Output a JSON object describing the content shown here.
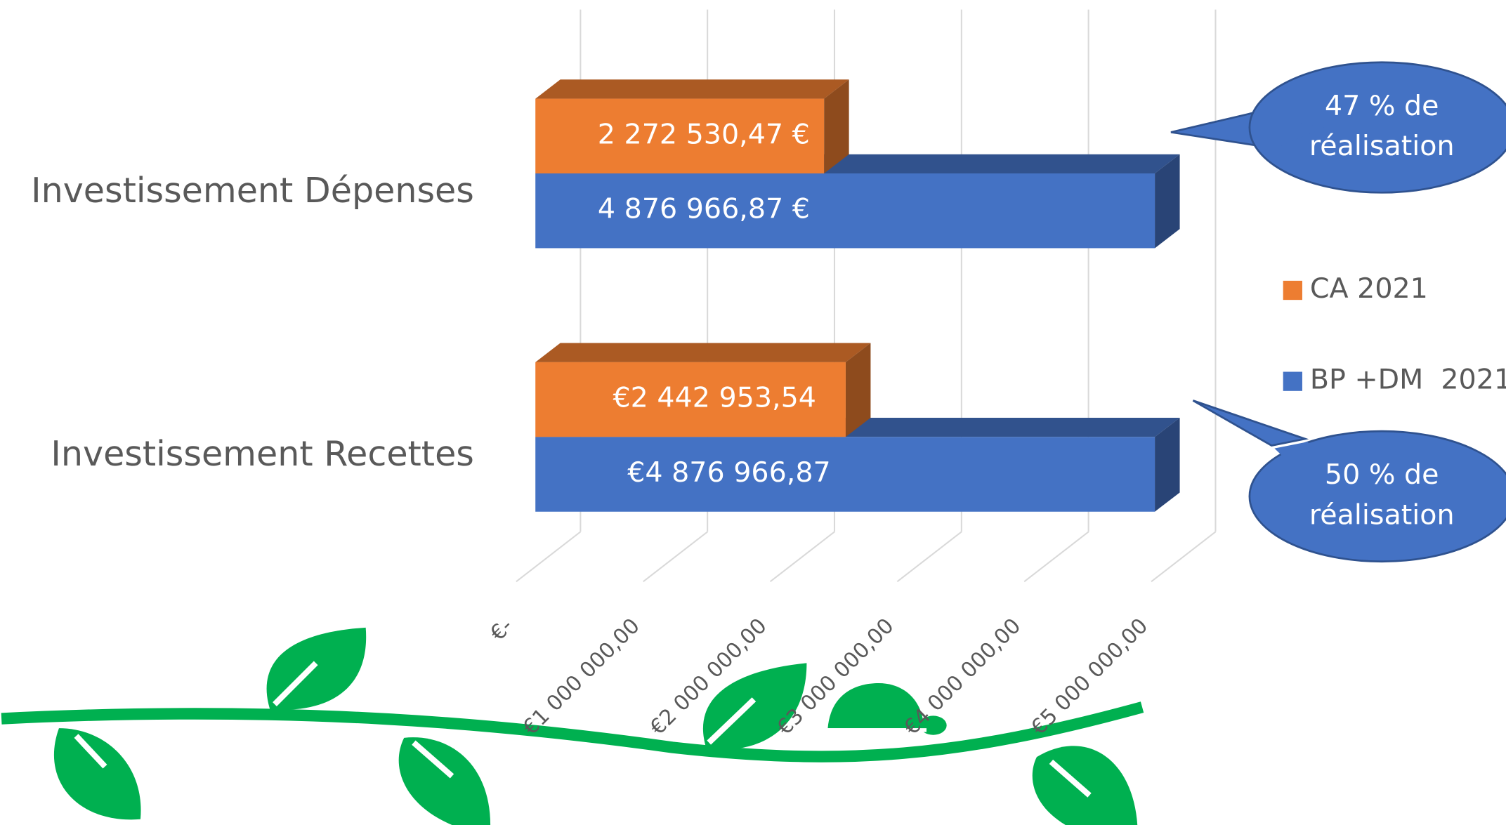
{
  "chart_data": {
    "type": "bar3d",
    "categories": [
      "Investissement Dépenses",
      "Investissement Recettes"
    ],
    "series": [
      {
        "name": "CA 2021",
        "color": "#ed7d31",
        "values": [
          2272530.47,
          2442953.54
        ],
        "value_labels": [
          "2 272 530,47 €",
          "€2 442 953,54"
        ]
      },
      {
        "name": "BP +DM  2021",
        "color": "#4472c4",
        "values": [
          4876966.87,
          4876966.87
        ],
        "value_labels": [
          "4 876 966,87 €",
          "€4 876 966,87"
        ]
      }
    ],
    "xlim": [
      0,
      5000000
    ],
    "xticks": [
      {
        "value": 0,
        "label": "€-"
      },
      {
        "value": 1000000,
        "label": "€1 000 000,00"
      },
      {
        "value": 2000000,
        "label": "€2 000 000,00"
      },
      {
        "value": 3000000,
        "label": "€3 000 000,00"
      },
      {
        "value": 4000000,
        "label": "€4 000 000,00"
      },
      {
        "value": 5000000,
        "label": "€5 000 000,00"
      }
    ],
    "grid": true,
    "legend": "right",
    "annotations": [
      "47 % de réalisation",
      "50 % de réalisation"
    ]
  }
}
